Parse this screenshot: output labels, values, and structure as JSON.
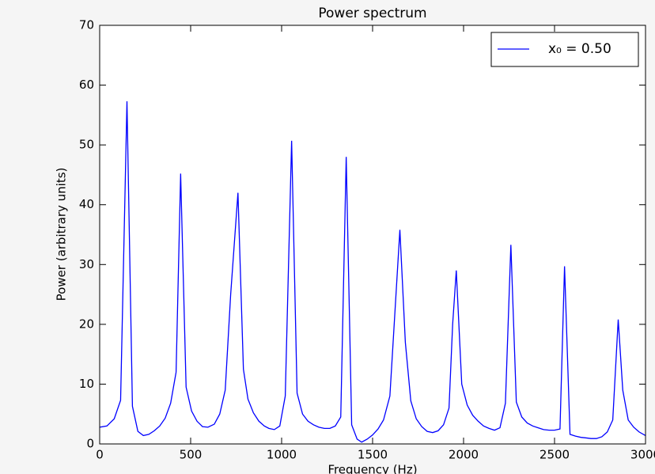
{
  "chart_data": {
    "type": "line",
    "title": "Power spectrum",
    "x_label": "Frequency (Hz)",
    "y_label": "Power (arbitrary units)",
    "x": [
      0,
      40,
      80,
      115,
      150,
      180,
      210,
      240,
      270,
      300,
      330,
      360,
      390,
      420,
      445,
      475,
      505,
      535,
      565,
      595,
      630,
      660,
      690,
      720,
      760,
      790,
      815,
      845,
      875,
      905,
      930,
      960,
      990,
      1020,
      1055,
      1085,
      1115,
      1145,
      1175,
      1205,
      1235,
      1265,
      1295,
      1325,
      1355,
      1385,
      1415,
      1440,
      1470,
      1500,
      1530,
      1560,
      1595,
      1650,
      1680,
      1710,
      1740,
      1770,
      1800,
      1830,
      1860,
      1890,
      1920,
      1940,
      1960,
      1990,
      2020,
      2050,
      2080,
      2110,
      2140,
      2170,
      2200,
      2230,
      2260,
      2290,
      2320,
      2350,
      2380,
      2410,
      2440,
      2470,
      2500,
      2530,
      2555,
      2585,
      2615,
      2645,
      2675,
      2700,
      2730,
      2760,
      2790,
      2820,
      2850,
      2875,
      2905,
      2935,
      2965,
      3000
    ],
    "series": [
      {
        "name": "x₀ = 0.50",
        "color": "#0000ff",
        "values": [
          2.8,
          3.0,
          4.2,
          7.3,
          57.3,
          6.3,
          2.1,
          1.4,
          1.6,
          2.2,
          3.0,
          4.3,
          6.8,
          12,
          45.2,
          9.5,
          5.5,
          3.8,
          2.9,
          2.8,
          3.3,
          5.0,
          9,
          25,
          42,
          12.5,
          7.5,
          5.2,
          3.8,
          3.0,
          2.6,
          2.4,
          3.0,
          8,
          50.7,
          8.5,
          5.0,
          3.8,
          3.2,
          2.8,
          2.6,
          2.6,
          3.0,
          4.5,
          48,
          3.2,
          0.8,
          0.3,
          0.8,
          1.5,
          2.5,
          4.0,
          8.0,
          35.8,
          17,
          7.2,
          4.2,
          2.9,
          2.1,
          1.9,
          2.2,
          3.2,
          6,
          20,
          29,
          10,
          6.5,
          4.8,
          3.8,
          3.0,
          2.6,
          2.3,
          2.7,
          6.8,
          33.3,
          7,
          4.5,
          3.5,
          3.0,
          2.7,
          2.4,
          2.3,
          2.3,
          2.5,
          29.7,
          1.6,
          1.3,
          1.1,
          1.0,
          0.9,
          0.9,
          1.2,
          2.0,
          4.0,
          20.8,
          9,
          4,
          2.8,
          2.0,
          1.4
        ]
      }
    ],
    "xlim": [
      0,
      3000
    ],
    "xticks": [
      0,
      500,
      1000,
      1500,
      2000,
      2500,
      3000
    ],
    "ylim": [
      0,
      70
    ],
    "yticks": [
      0,
      10,
      20,
      30,
      40,
      50,
      60,
      70
    ],
    "legend": "upper right"
  }
}
